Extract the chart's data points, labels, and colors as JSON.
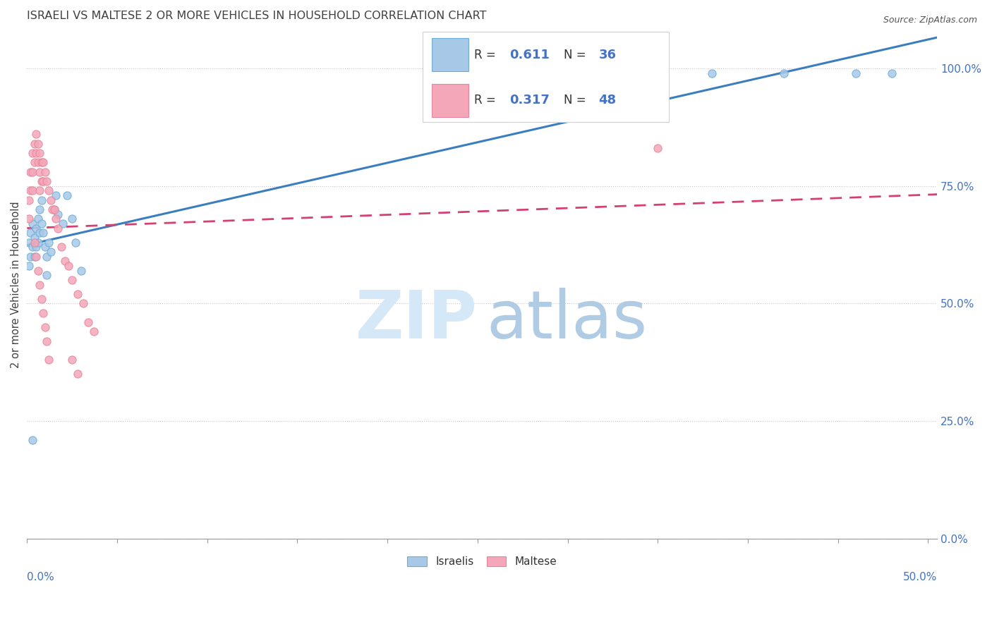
{
  "title": "ISRAELI VS MALTESE 2 OR MORE VEHICLES IN HOUSEHOLD CORRELATION CHART",
  "source": "Source: ZipAtlas.com",
  "ylabel_label": "2 or more Vehicles in Household",
  "legend_r_israeli": "0.611",
  "legend_n_israeli": "36",
  "legend_r_maltese": "0.317",
  "legend_n_maltese": "48",
  "blue_scatter": "#a8c8e8",
  "blue_edge": "#6aaed6",
  "pink_scatter": "#f4a7b9",
  "pink_edge": "#e8849a",
  "blue_line": "#3a7ebf",
  "pink_line": "#d44070",
  "axis_color": "#4472C4",
  "title_color": "#404040",
  "israeli_x": [
    0.001,
    0.001,
    0.002,
    0.002,
    0.003,
    0.003,
    0.004,
    0.004,
    0.005,
    0.005,
    0.006,
    0.006,
    0.007,
    0.007,
    0.008,
    0.008,
    0.009,
    0.01,
    0.011,
    0.011,
    0.012,
    0.013,
    0.015,
    0.016,
    0.017,
    0.02,
    0.022,
    0.025,
    0.027,
    0.03,
    0.31,
    0.38,
    0.42,
    0.46,
    0.48,
    0.003
  ],
  "israeli_y": [
    0.63,
    0.58,
    0.65,
    0.6,
    0.67,
    0.62,
    0.64,
    0.6,
    0.66,
    0.62,
    0.68,
    0.63,
    0.7,
    0.65,
    0.72,
    0.67,
    0.65,
    0.62,
    0.6,
    0.56,
    0.63,
    0.61,
    0.7,
    0.73,
    0.69,
    0.67,
    0.73,
    0.68,
    0.63,
    0.57,
    0.985,
    0.99,
    0.99,
    0.99,
    0.99,
    0.21
  ],
  "maltese_x": [
    0.001,
    0.001,
    0.002,
    0.002,
    0.003,
    0.003,
    0.003,
    0.004,
    0.004,
    0.005,
    0.005,
    0.006,
    0.006,
    0.007,
    0.007,
    0.007,
    0.008,
    0.008,
    0.009,
    0.009,
    0.01,
    0.011,
    0.012,
    0.013,
    0.014,
    0.015,
    0.016,
    0.017,
    0.019,
    0.021,
    0.023,
    0.025,
    0.028,
    0.031,
    0.034,
    0.037,
    0.004,
    0.005,
    0.006,
    0.007,
    0.008,
    0.009,
    0.01,
    0.011,
    0.012,
    0.025,
    0.028,
    0.35
  ],
  "maltese_y": [
    0.72,
    0.68,
    0.78,
    0.74,
    0.82,
    0.78,
    0.74,
    0.84,
    0.8,
    0.86,
    0.82,
    0.84,
    0.8,
    0.82,
    0.78,
    0.74,
    0.8,
    0.76,
    0.8,
    0.76,
    0.78,
    0.76,
    0.74,
    0.72,
    0.7,
    0.7,
    0.68,
    0.66,
    0.62,
    0.59,
    0.58,
    0.55,
    0.52,
    0.5,
    0.46,
    0.44,
    0.63,
    0.6,
    0.57,
    0.54,
    0.51,
    0.48,
    0.45,
    0.42,
    0.38,
    0.38,
    0.35,
    0.83
  ],
  "xlim": [
    0.0,
    0.505
  ],
  "ylim": [
    0.0,
    1.08
  ],
  "yticks": [
    0.0,
    0.25,
    0.5,
    0.75,
    1.0
  ],
  "ytick_labels": [
    "0.0%",
    "25.0%",
    "50.0%",
    "75.0%",
    "100.0%"
  ]
}
